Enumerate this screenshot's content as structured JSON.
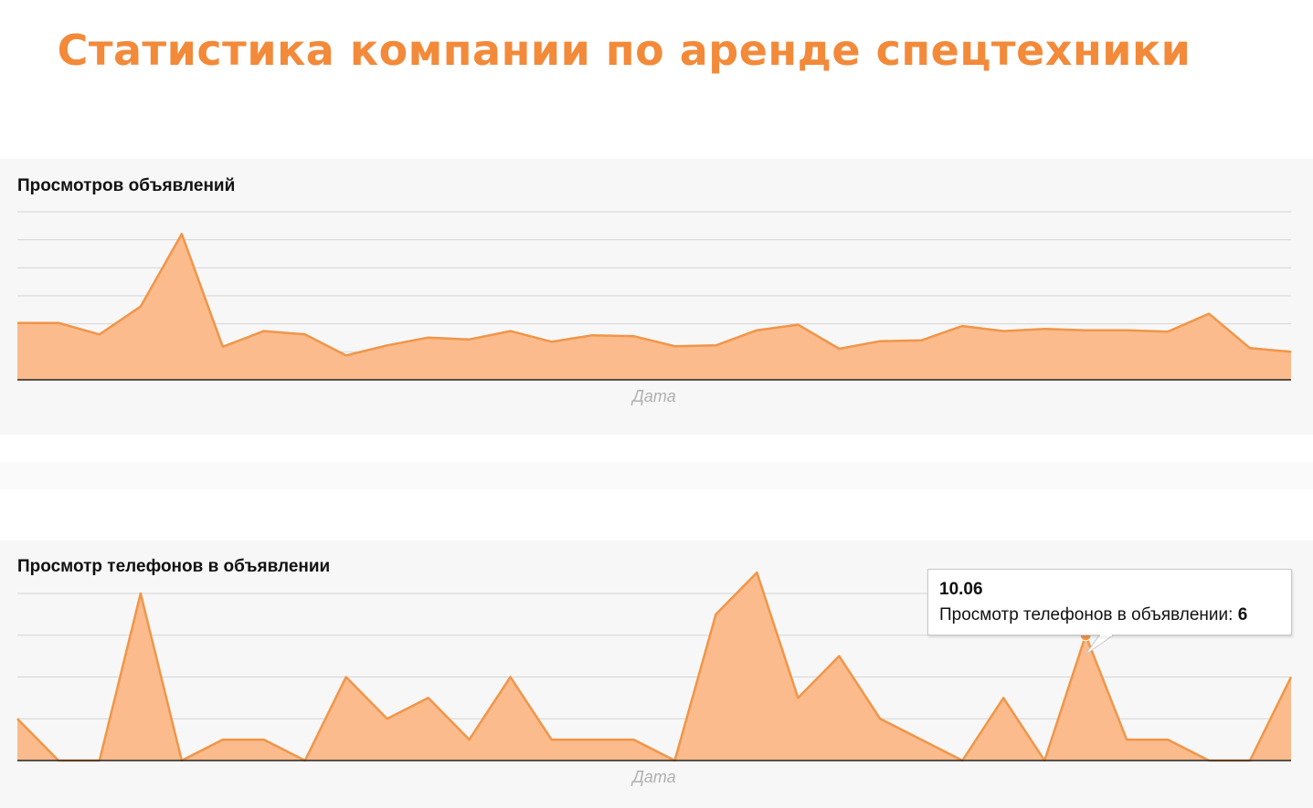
{
  "page": {
    "title": "Статистика компании по аренде спецтехники"
  },
  "colors": {
    "title": "#f28a3a",
    "line": "#f19548",
    "fill": "#fbbb8c",
    "grid": "#d5d5d5",
    "axis": "#222222"
  },
  "chart_data": [
    {
      "type": "area",
      "title": "Просмотров объявлений",
      "xlabel": "Дата",
      "ylabel": "",
      "grid": true,
      "ylim": [
        0,
        6
      ],
      "x": [
        1,
        2,
        3,
        4,
        5,
        6,
        7,
        8,
        9,
        10,
        11,
        12,
        13,
        14,
        15,
        16,
        17,
        18,
        19,
        20,
        21,
        22,
        23,
        24,
        25,
        26,
        27,
        28,
        29,
        30,
        31,
        32
      ],
      "series": [
        {
          "name": "Просмотров объявлений",
          "values": [
            2.03,
            2.03,
            1.62,
            2.62,
            5.21,
            1.18,
            1.74,
            1.62,
            0.87,
            1.23,
            1.51,
            1.44,
            1.74,
            1.36,
            1.59,
            1.56,
            1.2,
            1.23,
            1.77,
            1.97,
            1.11,
            1.38,
            1.41,
            1.92,
            1.74,
            1.82,
            1.77,
            1.77,
            1.72,
            2.36,
            1.13,
            1.0
          ]
        }
      ]
    },
    {
      "type": "area",
      "title": "Просмотр телефонов в объявлении",
      "xlabel": "Дата",
      "ylabel": "",
      "grid": true,
      "ylim": [
        0,
        8
      ],
      "x": [
        1,
        2,
        3,
        4,
        5,
        6,
        7,
        8,
        9,
        10,
        11,
        12,
        13,
        14,
        15,
        16,
        17,
        18,
        19,
        20,
        21,
        22,
        23,
        24,
        25,
        26,
        27,
        28,
        29,
        30,
        31,
        32
      ],
      "series": [
        {
          "name": "Просмотр телефонов в объявлении",
          "values": [
            2,
            0,
            0,
            8,
            0,
            1,
            1,
            0,
            4,
            2,
            3,
            1,
            4,
            1,
            1,
            1,
            0,
            7,
            9,
            3,
            5,
            2,
            1,
            0,
            3,
            0,
            6,
            1,
            1,
            0,
            0,
            4
          ]
        }
      ],
      "tooltip": {
        "date": "10.06",
        "label": "Просмотр телефонов в объявлении: ",
        "value": "6",
        "point_index": 26
      }
    }
  ]
}
